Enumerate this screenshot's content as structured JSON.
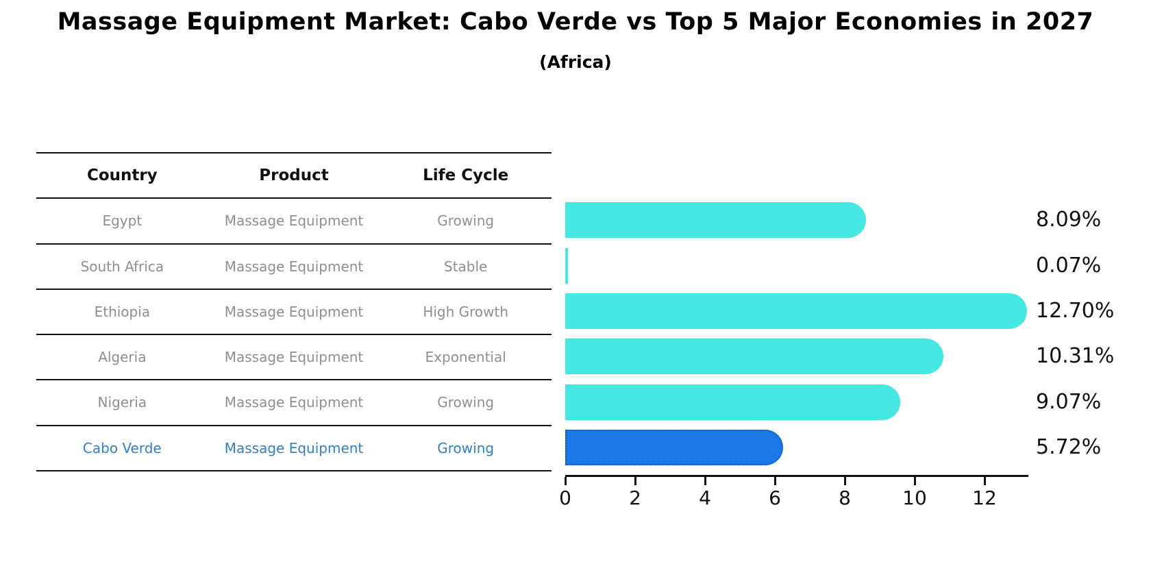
{
  "header": {
    "title": "Massage Equipment Market: Cabo Verde vs Top 5 Major Economies in 2027",
    "subtitle": "(Africa)"
  },
  "table": {
    "columns": [
      "Country",
      "Product",
      "Life Cycle"
    ],
    "rows": [
      {
        "country": "Egypt",
        "product": "Massage Equipment",
        "life_cycle": "Growing",
        "highlighted": false
      },
      {
        "country": "South Africa",
        "product": "Massage Equipment",
        "life_cycle": "Stable",
        "highlighted": false
      },
      {
        "country": "Ethiopia",
        "product": "Massage Equipment",
        "life_cycle": "High Growth",
        "highlighted": false
      },
      {
        "country": "Algeria",
        "product": "Massage Equipment",
        "life_cycle": "Exponential",
        "highlighted": false
      },
      {
        "country": "Nigeria",
        "product": "Massage Equipment",
        "life_cycle": "Growing",
        "highlighted": true
      }
    ],
    "highlight_row": {
      "country": "Cabo Verde",
      "product": "Massage Equipment",
      "life_cycle": "Growing"
    }
  },
  "chart_data": {
    "type": "bar",
    "orientation": "horizontal",
    "title": "Massage Equipment Market: Cabo Verde vs Top 5 Major Economies in 2027",
    "subtitle": "(Africa)",
    "categories": [
      "Egypt",
      "South Africa",
      "Ethiopia",
      "Algeria",
      "Nigeria",
      "Cabo Verde"
    ],
    "values": [
      8.09,
      0.07,
      12.7,
      10.31,
      9.07,
      5.72
    ],
    "value_labels": [
      "8.09%",
      "0.07%",
      "12.70%",
      "10.31%",
      "9.07%",
      "5.72%"
    ],
    "highlight_index": 5,
    "xtick_labels": [
      "0",
      "2",
      "4",
      "6",
      "8",
      "10",
      "12"
    ],
    "xtick_values": [
      0,
      2,
      4,
      6,
      8,
      10,
      12
    ],
    "xlim": [
      0,
      13.25
    ],
    "grid": false,
    "legend": null,
    "bar_color": "#45E7E0",
    "highlight_bar_color": "#1C77E3",
    "highlight_border_color": "#0D5BC6",
    "highlight_text_color": "#2E80C8",
    "axis_color": "#111111",
    "label_color": "#111111",
    "table_text_color": "#8f8f8f"
  }
}
